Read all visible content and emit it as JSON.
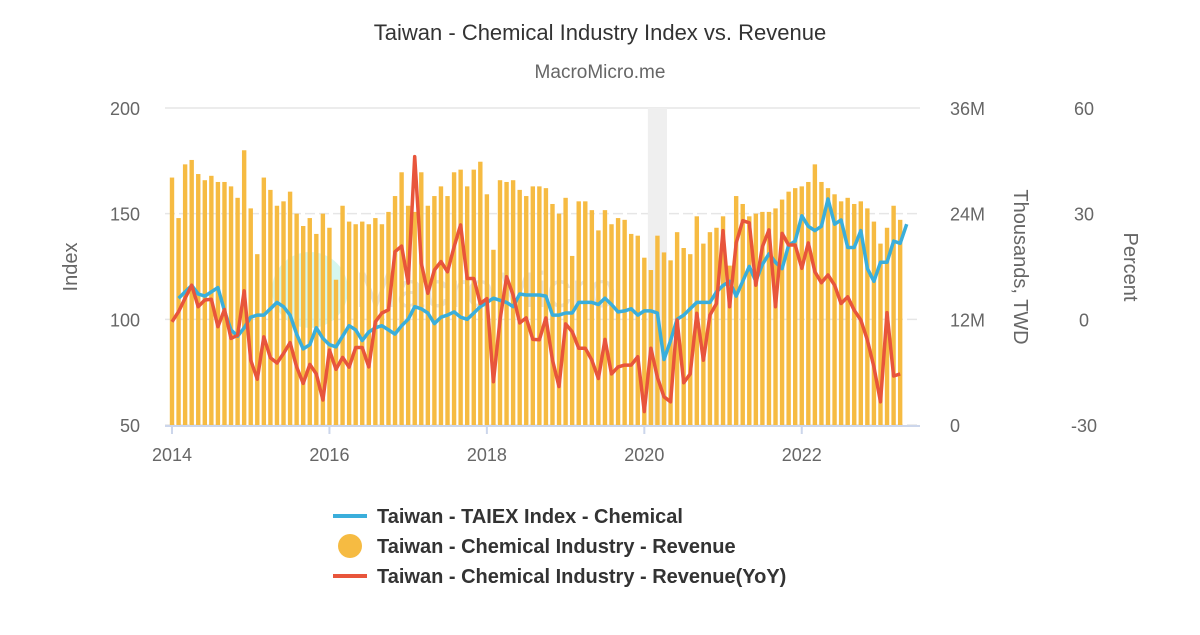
{
  "chart_data": {
    "type": "bar+line",
    "title": "Taiwan - Chemical Industry Index vs. Revenue",
    "subtitle": "MacroMicro.me",
    "watermark": "MacroMicro",
    "x_ticks": [
      "2014",
      "2016",
      "2018",
      "2020",
      "2022"
    ],
    "axes": {
      "index": {
        "label": "Index",
        "range": [
          50,
          200
        ],
        "ticks": [
          "200",
          "150",
          "100",
          "50"
        ]
      },
      "revenue": {
        "label": "Thousands, TWD",
        "range": [
          0,
          36
        ],
        "unit": "M",
        "ticks": [
          "36M",
          "24M",
          "12M",
          "0"
        ]
      },
      "percent": {
        "label": "Percent",
        "range": [
          -30,
          60
        ],
        "ticks": [
          "60",
          "30",
          "0",
          "-30"
        ]
      }
    },
    "grid": true,
    "legend_placement": "bottom",
    "shaded_period": [
      "2020-02",
      "2020-04"
    ],
    "x": [
      "2014-01",
      "2014-02",
      "2014-03",
      "2014-04",
      "2014-05",
      "2014-06",
      "2014-07",
      "2014-08",
      "2014-09",
      "2014-10",
      "2014-11",
      "2014-12",
      "2015-01",
      "2015-02",
      "2015-03",
      "2015-04",
      "2015-05",
      "2015-06",
      "2015-07",
      "2015-08",
      "2015-09",
      "2015-10",
      "2015-11",
      "2015-12",
      "2016-01",
      "2016-02",
      "2016-03",
      "2016-04",
      "2016-05",
      "2016-06",
      "2016-07",
      "2016-08",
      "2016-09",
      "2016-10",
      "2016-11",
      "2016-12",
      "2017-01",
      "2017-02",
      "2017-03",
      "2017-04",
      "2017-05",
      "2017-06",
      "2017-07",
      "2017-08",
      "2017-09",
      "2017-10",
      "2017-11",
      "2017-12",
      "2018-01",
      "2018-02",
      "2018-03",
      "2018-04",
      "2018-05",
      "2018-06",
      "2018-07",
      "2018-08",
      "2018-09",
      "2018-10",
      "2018-11",
      "2018-12",
      "2019-01",
      "2019-02",
      "2019-03",
      "2019-04",
      "2019-05",
      "2019-06",
      "2019-07",
      "2019-08",
      "2019-09",
      "2019-10",
      "2019-11",
      "2019-12",
      "2020-01",
      "2020-02",
      "2020-03",
      "2020-04",
      "2020-05",
      "2020-06",
      "2020-07",
      "2020-08",
      "2020-09",
      "2020-10",
      "2020-11",
      "2020-12",
      "2021-01",
      "2021-02",
      "2021-03",
      "2021-04",
      "2021-05",
      "2021-06",
      "2021-07",
      "2021-08",
      "2021-09",
      "2021-10",
      "2021-11",
      "2021-12",
      "2022-01",
      "2022-02",
      "2022-03",
      "2022-04",
      "2022-05",
      "2022-06",
      "2022-07",
      "2022-08",
      "2022-09",
      "2022-10",
      "2022-11",
      "2022-12",
      "2023-01",
      "2023-02",
      "2023-03",
      "2023-04",
      "2023-05"
    ],
    "series": [
      {
        "name": "Taiwan - TAIEX Index - Chemical",
        "type": "line",
        "axis": "index",
        "color": "#3aaedb",
        "values": [
          null,
          110,
          113,
          116,
          112,
          111,
          113,
          115,
          104,
          95,
          92,
          96,
          101,
          102,
          102,
          105,
          108,
          106,
          102,
          93,
          86,
          88,
          96,
          91,
          88,
          87,
          92,
          97,
          95,
          90,
          94,
          96,
          97,
          95,
          93,
          97,
          100,
          106,
          105,
          103,
          98,
          101,
          102,
          103.5,
          101,
          100,
          103,
          106,
          108,
          110,
          109,
          108,
          106,
          112,
          111.5,
          111.5,
          111.5,
          111,
          102,
          102,
          103,
          103,
          108,
          108,
          108,
          107,
          110,
          107,
          103.5,
          104,
          105,
          102,
          104,
          104,
          103,
          81,
          90,
          100,
          102,
          105,
          108,
          108,
          108,
          113,
          116,
          118,
          111,
          118,
          125,
          118,
          126,
          131,
          127,
          124,
          135,
          137,
          149,
          144,
          142,
          144,
          157,
          145,
          147,
          134,
          134,
          142,
          124,
          118,
          127,
          127,
          137,
          136,
          145
        ]
      },
      {
        "name": "Taiwan - Chemical Industry - Revenue",
        "type": "bar",
        "axis": "revenue",
        "color": "#f6bb42",
        "values": [
          28.1,
          23.5,
          29.6,
          30.1,
          28.5,
          27.8,
          28.3,
          27.6,
          27.6,
          27.1,
          25.8,
          31.2,
          24.6,
          19.4,
          28.1,
          26.7,
          24.9,
          25.4,
          26.5,
          24.0,
          22.6,
          23.5,
          21.7,
          24.0,
          22.4,
          16.5,
          24.9,
          23.1,
          22.8,
          23.1,
          22.8,
          23.5,
          22.8,
          24.2,
          26.0,
          28.7,
          24.9,
          24.2,
          28.7,
          24.9,
          26.0,
          27.1,
          26.0,
          28.7,
          29.0,
          27.1,
          29.0,
          29.9,
          26.2,
          19.9,
          27.8,
          27.6,
          27.8,
          26.7,
          26.0,
          27.1,
          27.1,
          26.9,
          25.1,
          24.0,
          25.8,
          19.2,
          25.4,
          25.4,
          24.4,
          22.1,
          24.4,
          22.8,
          23.5,
          23.3,
          21.7,
          21.5,
          19.0,
          17.6,
          21.5,
          19.6,
          18.7,
          21.9,
          20.1,
          19.4,
          23.7,
          20.6,
          21.9,
          22.4,
          23.7,
          18.1,
          26.0,
          25.1,
          23.7,
          24.0,
          24.2,
          24.2,
          24.6,
          25.6,
          26.5,
          26.9,
          27.1,
          27.6,
          29.6,
          27.6,
          26.9,
          26.2,
          25.4,
          25.8,
          25.1,
          25.4,
          24.6,
          23.1,
          20.6,
          22.4,
          24.9,
          23.3,
          null
        ]
      },
      {
        "name": "Taiwan - Chemical Industry - Revenue(YoY)",
        "type": "line",
        "axis": "percent",
        "color": "#e8553b",
        "values": [
          -0.7,
          2.2,
          6,
          9.7,
          3.6,
          5.5,
          5.7,
          -2.1,
          2.8,
          -5.4,
          -4.5,
          8.1,
          -11.6,
          -17,
          -5,
          -10.9,
          -12.4,
          -9.7,
          -6.6,
          -13.5,
          -18.2,
          -12.8,
          -15.5,
          -22.9,
          -8.7,
          -14.2,
          -10.8,
          -13.6,
          -8,
          -8,
          -13.5,
          -0.7,
          1.8,
          2.7,
          19.2,
          20.8,
          10.3,
          46.2,
          15.9,
          7.4,
          14,
          16.4,
          13.5,
          20.6,
          26.8,
          11.6,
          11.6,
          4.5,
          5.9,
          -17.7,
          -0.2,
          12.1,
          6.9,
          -1,
          0.4,
          -5.7,
          -5.8,
          0.4,
          -11.6,
          -19.1,
          -1.3,
          -3.5,
          -8.2,
          -8.2,
          -11.6,
          -16.8,
          -5.7,
          -15.5,
          -13.5,
          -13,
          -13,
          -10.6,
          -26.2,
          -8.2,
          -16.5,
          -22,
          -23.4,
          -0.2,
          -18,
          -15.5,
          1.7,
          -11.6,
          1.2,
          4.5,
          25.2,
          3.6,
          21.7,
          28,
          27.4,
          9.7,
          20.6,
          25.4,
          3.6,
          24.4,
          21.1,
          21.1,
          14.5,
          21.7,
          13.5,
          10.4,
          12.6,
          9.7,
          4.5,
          6.4,
          2.6,
          -0.2,
          -5.9,
          -13.5,
          -23.4,
          1.9,
          -16.1,
          -15.5,
          null
        ]
      }
    ],
    "legend": [
      {
        "label": "Taiwan - TAIEX Index - Chemical",
        "symbol": "line",
        "color": "#3aaedb"
      },
      {
        "label": "Taiwan - Chemical Industry - Revenue",
        "symbol": "circle",
        "color": "#f6bb42"
      },
      {
        "label": "Taiwan - Chemical Industry - Revenue(YoY)",
        "symbol": "line",
        "color": "#e8553b"
      }
    ]
  }
}
